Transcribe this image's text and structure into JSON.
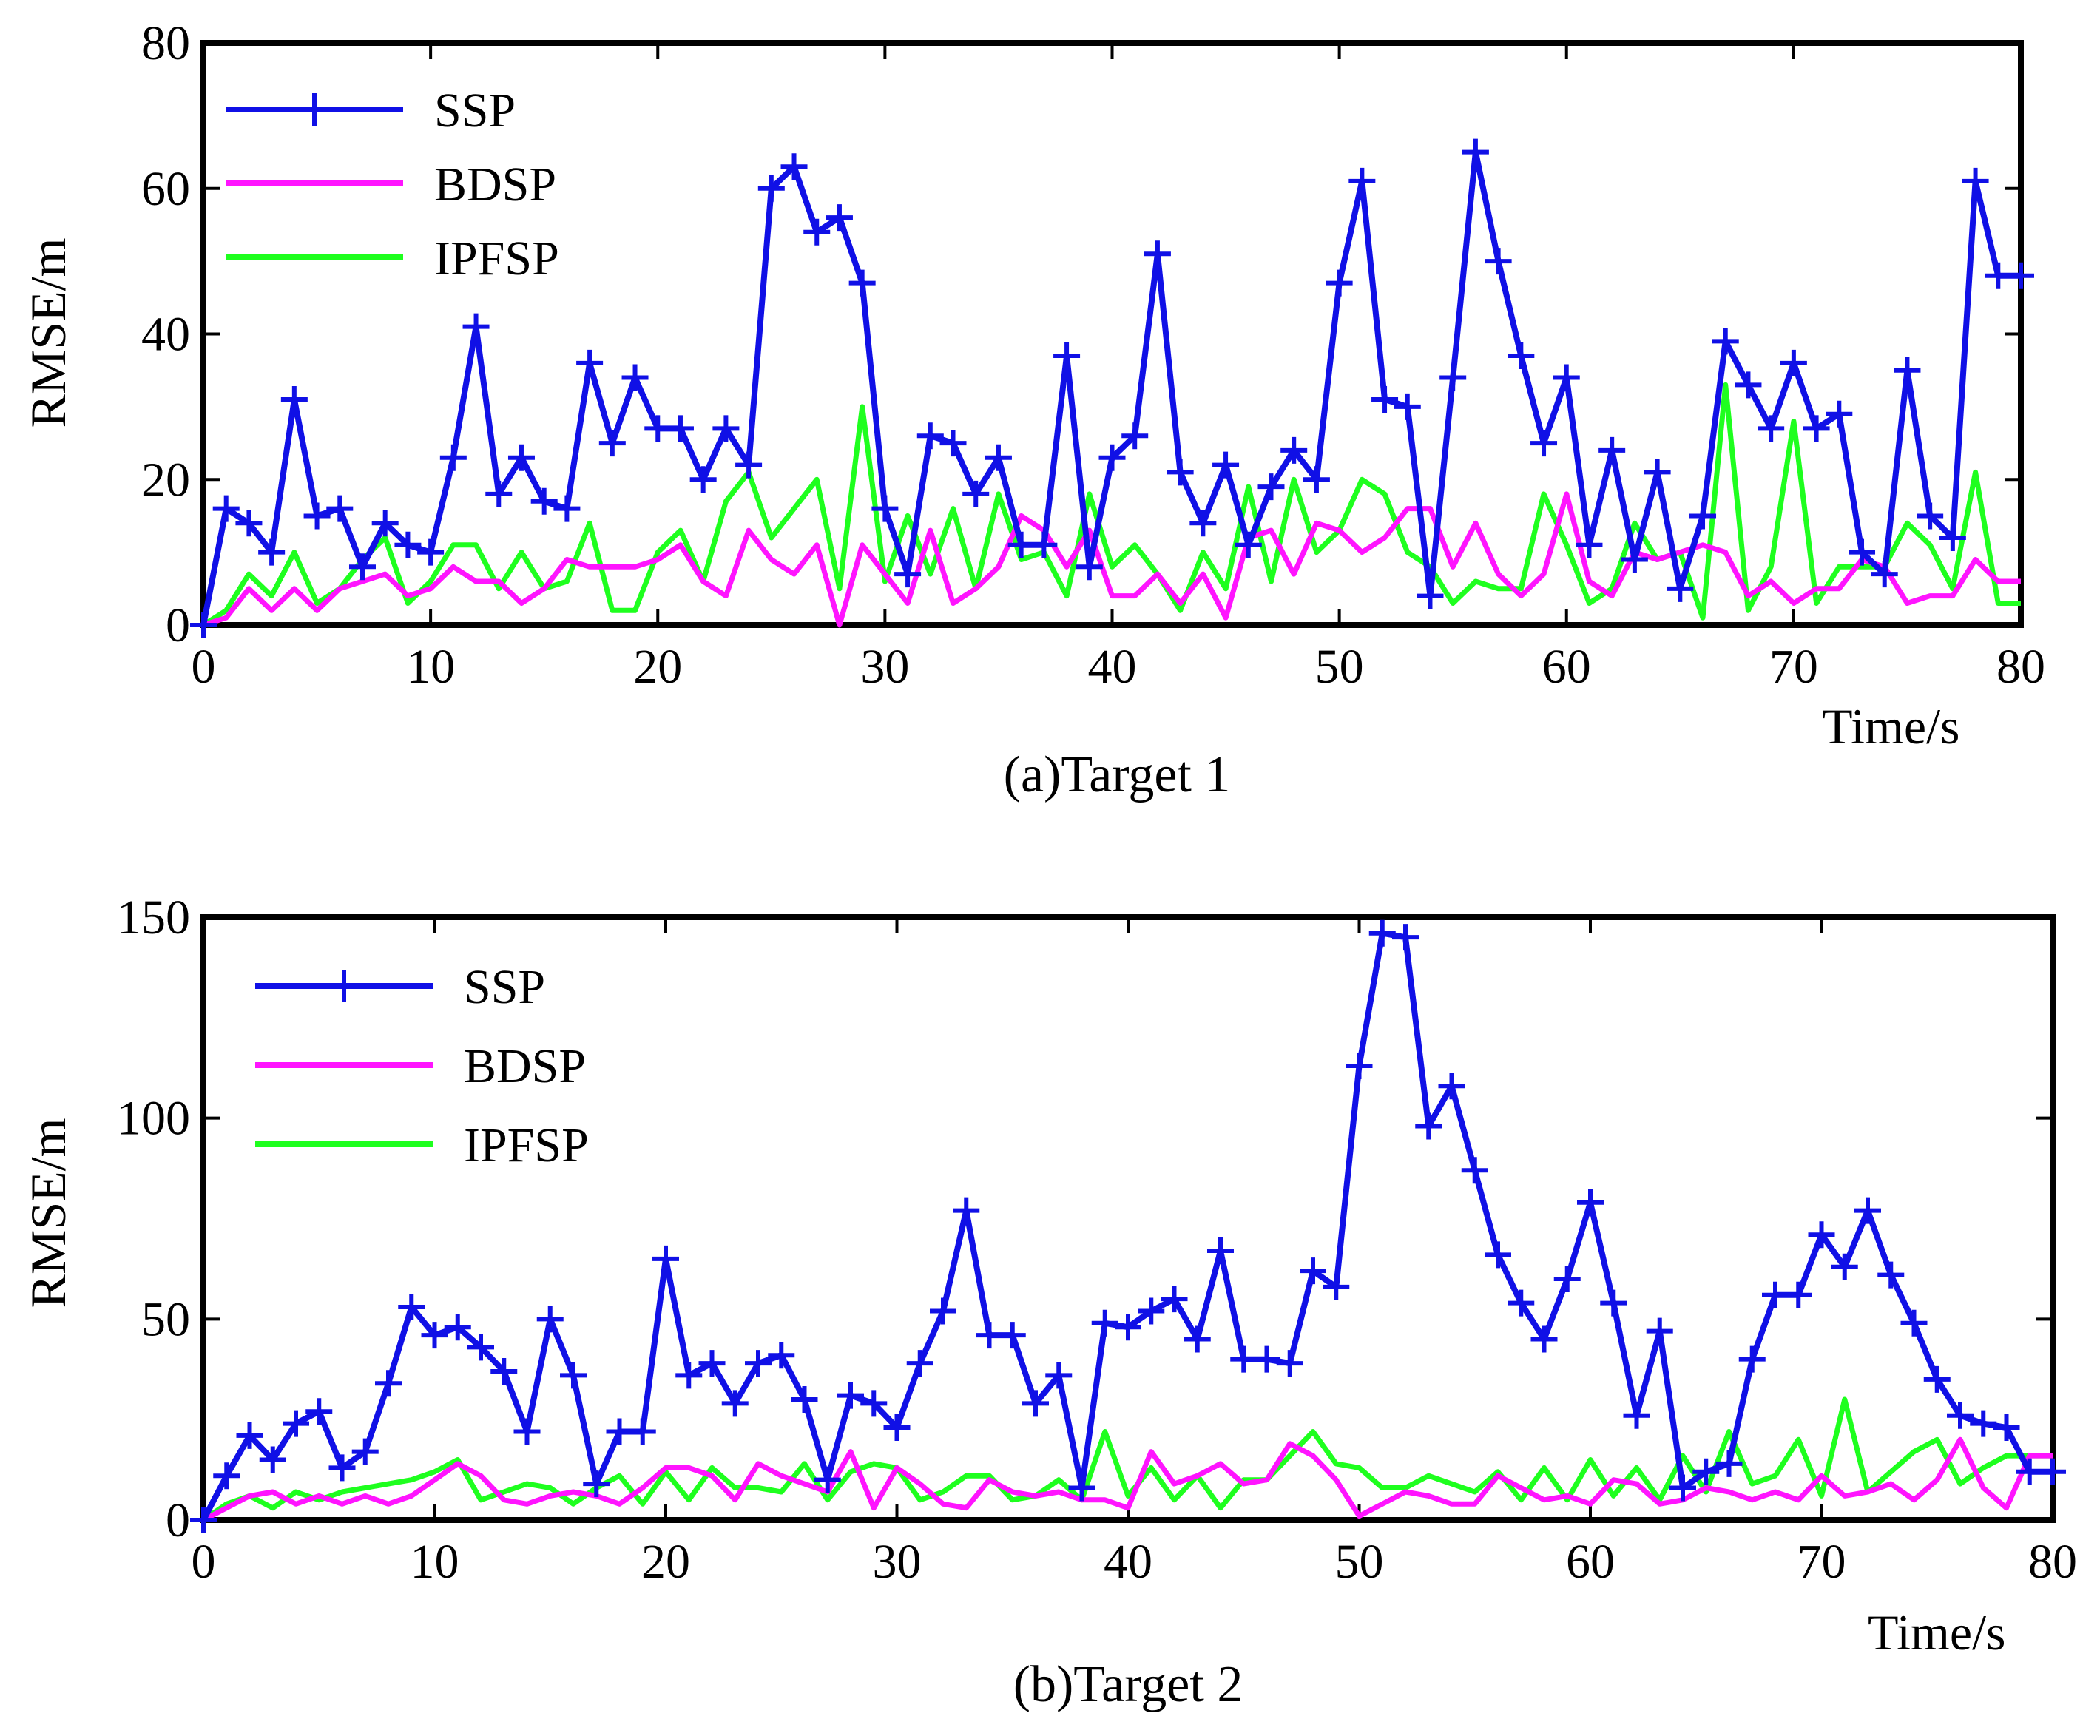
{
  "colors": {
    "SSP": "#1010e6",
    "BDSP": "#ff14ff",
    "IPFSP": "#1eff1e",
    "axis": "#000000",
    "background": "#ffffff"
  },
  "chart_data": [
    {
      "type": "line",
      "caption": "(a)Target 1",
      "xlabel": "Time/s",
      "ylabel": "RMSE/m",
      "xlim": [
        0,
        80
      ],
      "ylim": [
        0,
        80
      ],
      "xticks": [
        "0",
        "10",
        "20",
        "30",
        "40",
        "50",
        "60",
        "70",
        "80"
      ],
      "yticks": [
        "0",
        "20",
        "40",
        "60",
        "80"
      ],
      "legend_position": "top-left",
      "series": [
        {
          "name": "SSP",
          "marker": "plus",
          "x": [
            0,
            1,
            2,
            3,
            4,
            5,
            6,
            7,
            8,
            9,
            10,
            11,
            12,
            13,
            14,
            15,
            16,
            17,
            18,
            19,
            20,
            21,
            22,
            23,
            24,
            25,
            26,
            27,
            28,
            29,
            30,
            31,
            32,
            33,
            34,
            35,
            36,
            37,
            38,
            39,
            40,
            41,
            42,
            43,
            44,
            45,
            46,
            47,
            48,
            49,
            50,
            51,
            52,
            53,
            54,
            55,
            56,
            57,
            58,
            59,
            60,
            61,
            62,
            63,
            64,
            65,
            66,
            67,
            68,
            69,
            70,
            71,
            72,
            73,
            74,
            75,
            76,
            77,
            78,
            79,
            80
          ],
          "values": [
            0,
            16,
            14,
            10,
            31,
            15,
            16,
            8,
            14,
            11,
            10,
            23,
            41,
            18,
            23,
            17,
            16,
            36,
            25,
            34,
            27,
            27,
            20,
            27,
            22,
            60,
            63,
            54,
            56,
            47,
            16,
            7,
            26,
            25,
            18,
            23,
            11,
            11,
            37,
            8,
            23,
            26,
            51,
            21,
            14,
            22,
            11,
            19,
            24,
            20,
            47,
            61,
            31,
            30,
            4,
            34,
            65,
            50,
            37,
            25,
            34,
            11,
            24,
            9,
            21,
            5,
            15,
            39,
            33,
            27,
            36,
            27,
            29,
            10,
            7,
            35,
            15,
            12,
            61,
            48,
            48
          ]
        },
        {
          "name": "BDSP",
          "marker": "none",
          "x": [
            0,
            1,
            2,
            3,
            4,
            5,
            6,
            7,
            8,
            9,
            10,
            11,
            12,
            13,
            14,
            15,
            16,
            17,
            18,
            19,
            20,
            21,
            22,
            23,
            24,
            25,
            26,
            27,
            28,
            29,
            30,
            31,
            32,
            33,
            34,
            35,
            36,
            37,
            38,
            39,
            40,
            41,
            42,
            43,
            44,
            45,
            46,
            47,
            48,
            49,
            50,
            51,
            52,
            53,
            54,
            55,
            56,
            57,
            58,
            59,
            60,
            61,
            62,
            63,
            64,
            65,
            66,
            67,
            68,
            69,
            70,
            71,
            72,
            73,
            74,
            75,
            76,
            77,
            78,
            79,
            80
          ],
          "values": [
            0,
            1,
            5,
            2,
            5,
            2,
            5,
            6,
            7,
            4,
            5,
            8,
            6,
            6,
            3,
            5,
            9,
            8,
            8,
            8,
            9,
            11,
            6,
            4,
            13,
            9,
            7,
            11,
            0,
            11,
            7,
            3,
            13,
            3,
            5,
            8,
            15,
            13,
            8,
            13,
            4,
            4,
            7,
            3,
            7,
            1,
            12,
            13,
            7,
            14,
            13,
            10,
            12,
            16,
            16,
            8,
            14,
            7,
            4,
            7,
            18,
            6,
            4,
            10,
            9,
            10,
            11,
            10,
            4,
            6,
            3,
            5,
            5,
            9,
            8,
            3,
            4,
            4,
            9,
            6,
            6
          ]
        },
        {
          "name": "IPFSP",
          "marker": "none",
          "x": [
            0,
            1,
            2,
            3,
            4,
            5,
            6,
            7,
            8,
            9,
            10,
            11,
            12,
            13,
            14,
            15,
            16,
            17,
            18,
            19,
            20,
            21,
            22,
            23,
            24,
            25,
            26,
            27,
            28,
            29,
            30,
            31,
            32,
            33,
            34,
            35,
            36,
            37,
            38,
            39,
            40,
            41,
            42,
            43,
            44,
            45,
            46,
            47,
            48,
            49,
            50,
            51,
            52,
            53,
            54,
            55,
            56,
            57,
            58,
            59,
            60,
            61,
            62,
            63,
            64,
            65,
            66,
            67,
            68,
            69,
            70,
            71,
            72,
            73,
            74,
            75,
            76,
            77,
            78,
            79,
            80
          ],
          "values": [
            0,
            2,
            7,
            4,
            10,
            3,
            5,
            9,
            12,
            3,
            6,
            11,
            11,
            5,
            10,
            5,
            6,
            14,
            2,
            2,
            10,
            13,
            6,
            17,
            21,
            12,
            16,
            20,
            5,
            30,
            6,
            15,
            7,
            16,
            5,
            18,
            9,
            10,
            4,
            18,
            8,
            11,
            7,
            2,
            10,
            5,
            19,
            6,
            20,
            10,
            13,
            20,
            18,
            10,
            8,
            3,
            6,
            5,
            5,
            18,
            11,
            3,
            5,
            14,
            9,
            10,
            1,
            33,
            2,
            8,
            28,
            3,
            8,
            8,
            8,
            14,
            11,
            5,
            21,
            3,
            3
          ]
        }
      ]
    },
    {
      "type": "line",
      "caption": "(b)Target 2",
      "xlabel": "Time/s",
      "ylabel": "RMSE/m",
      "xlim": [
        0,
        80
      ],
      "ylim": [
        0,
        150
      ],
      "xticks": [
        "0",
        "10",
        "20",
        "30",
        "40",
        "50",
        "60",
        "70",
        "80"
      ],
      "yticks": [
        "0",
        "50",
        "100",
        "150"
      ],
      "legend_position": "top-left",
      "series": [
        {
          "name": "SSP",
          "marker": "plus",
          "x": [
            0,
            1,
            2,
            3,
            4,
            5,
            6,
            7,
            8,
            9,
            10,
            11,
            12,
            13,
            14,
            15,
            16,
            17,
            18,
            19,
            20,
            21,
            22,
            23,
            24,
            25,
            26,
            27,
            28,
            29,
            30,
            31,
            32,
            33,
            34,
            35,
            36,
            37,
            38,
            39,
            40,
            41,
            42,
            43,
            44,
            45,
            46,
            47,
            48,
            49,
            50,
            51,
            52,
            53,
            54,
            55,
            56,
            57,
            58,
            59,
            60,
            61,
            62,
            63,
            64,
            65,
            66,
            67,
            68,
            69,
            70,
            71,
            72,
            73,
            74,
            75,
            76,
            77,
            78,
            79,
            80
          ],
          "values": [
            0,
            11,
            21,
            15,
            24,
            27,
            13,
            17,
            34,
            53,
            46,
            48,
            43,
            37,
            22,
            50,
            36,
            9,
            22,
            22,
            65,
            36,
            39,
            29,
            39,
            41,
            30,
            10,
            31,
            29,
            23,
            39,
            52,
            77,
            46,
            46,
            29,
            36,
            8,
            49,
            48,
            52,
            55,
            45,
            67,
            40,
            40,
            39,
            62,
            58,
            113,
            146,
            145,
            98,
            108,
            87,
            66,
            54,
            45,
            60,
            79,
            54,
            26,
            47,
            8,
            12,
            14,
            40,
            56,
            56,
            71,
            63,
            77,
            61,
            49,
            35,
            26,
            24,
            23,
            12,
            12
          ]
        },
        {
          "name": "BDSP",
          "marker": "none",
          "x": [
            0,
            1,
            2,
            3,
            4,
            5,
            6,
            7,
            8,
            9,
            10,
            11,
            12,
            13,
            14,
            15,
            16,
            17,
            18,
            19,
            20,
            21,
            22,
            23,
            24,
            25,
            26,
            27,
            28,
            29,
            30,
            31,
            32,
            33,
            34,
            35,
            36,
            37,
            38,
            39,
            40,
            41,
            42,
            43,
            44,
            45,
            46,
            47,
            48,
            49,
            50,
            51,
            52,
            53,
            54,
            55,
            56,
            57,
            58,
            59,
            60,
            61,
            62,
            63,
            64,
            65,
            66,
            67,
            68,
            69,
            70,
            71,
            72,
            73,
            74,
            75,
            76,
            77,
            78,
            79,
            80
          ],
          "values": [
            0,
            3,
            6,
            7,
            4,
            6,
            4,
            6,
            4,
            6,
            10,
            14,
            11,
            5,
            4,
            6,
            7,
            6,
            4,
            8,
            13,
            13,
            11,
            5,
            14,
            11,
            9,
            7,
            17,
            3,
            13,
            9,
            4,
            3,
            10,
            7,
            6,
            7,
            5,
            5,
            3,
            17,
            9,
            11,
            14,
            9,
            10,
            19,
            16,
            10,
            1,
            4,
            7,
            6,
            4,
            4,
            11,
            8,
            5,
            6,
            4,
            10,
            9,
            4,
            5,
            8,
            7,
            5,
            7,
            5,
            11,
            6,
            7,
            9,
            5,
            10,
            20,
            8,
            3,
            16,
            16
          ]
        },
        {
          "name": "IPFSP",
          "marker": "none",
          "x": [
            0,
            1,
            2,
            3,
            4,
            5,
            6,
            7,
            8,
            9,
            10,
            11,
            12,
            13,
            14,
            15,
            16,
            17,
            18,
            19,
            20,
            21,
            22,
            23,
            24,
            25,
            26,
            27,
            28,
            29,
            30,
            31,
            32,
            33,
            34,
            35,
            36,
            37,
            38,
            39,
            40,
            41,
            42,
            43,
            44,
            45,
            46,
            47,
            48,
            49,
            50,
            51,
            52,
            53,
            54,
            55,
            56,
            57,
            58,
            59,
            60,
            61,
            62,
            63,
            64,
            65,
            66,
            67,
            68,
            69,
            70,
            71,
            72,
            73,
            74,
            75,
            76,
            77,
            78,
            79,
            80
          ],
          "values": [
            0,
            4,
            6,
            3,
            7,
            5,
            7,
            8,
            9,
            10,
            12,
            15,
            5,
            7,
            9,
            8,
            4,
            8,
            11,
            4,
            12,
            5,
            13,
            8,
            8,
            7,
            14,
            5,
            12,
            14,
            13,
            5,
            7,
            11,
            11,
            5,
            6,
            10,
            5,
            22,
            6,
            13,
            5,
            11,
            3,
            10,
            10,
            16,
            22,
            14,
            13,
            8,
            8,
            11,
            9,
            7,
            12,
            5,
            13,
            5,
            15,
            6,
            13,
            5,
            16,
            7,
            22,
            9,
            11,
            20,
            6,
            30,
            7,
            12,
            17,
            20,
            9,
            13,
            16,
            16,
            16
          ]
        }
      ]
    }
  ]
}
